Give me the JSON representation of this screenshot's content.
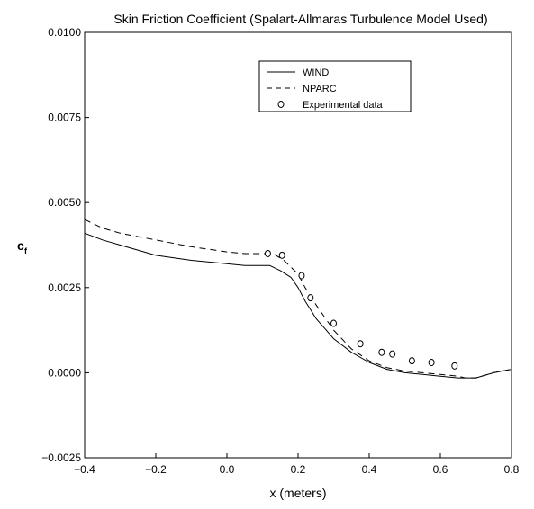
{
  "chart_data": {
    "type": "line",
    "title": "Skin Friction Coefficient (Spalart-Allmaras Turbulence Model Used)",
    "xlabel": "x (meters)",
    "ylabel_main": "c",
    "ylabel_sub": "f",
    "xlim": [
      -0.4,
      0.8
    ],
    "ylim": [
      -0.0025,
      0.01
    ],
    "xticks": [
      -0.4,
      -0.2,
      0.0,
      0.2,
      0.4,
      0.6,
      0.8
    ],
    "xtick_labels": [
      "−0.4",
      "−0.2",
      "0.0",
      "0.2",
      "0.4",
      "0.6",
      "0.8"
    ],
    "yticks": [
      -0.0025,
      0.0,
      0.0025,
      0.005,
      0.0075,
      0.01
    ],
    "ytick_labels": [
      "−0.0025",
      "0.0000",
      "0.0025",
      "0.0050",
      "0.0075",
      "0.0100"
    ],
    "grid": false,
    "legend_position": "top-right",
    "series": [
      {
        "name": "WIND",
        "style": "solid",
        "x": [
          -0.4,
          -0.35,
          -0.3,
          -0.2,
          -0.1,
          0.0,
          0.05,
          0.12,
          0.15,
          0.18,
          0.2,
          0.22,
          0.25,
          0.3,
          0.35,
          0.4,
          0.45,
          0.5,
          0.55,
          0.6,
          0.65,
          0.67,
          0.7,
          0.75,
          0.8
        ],
        "y": [
          0.0041,
          0.0039,
          0.00375,
          0.00345,
          0.0033,
          0.0032,
          0.00315,
          0.00315,
          0.003,
          0.0028,
          0.0025,
          0.0021,
          0.0016,
          0.001,
          0.0006,
          0.0003,
          0.0001,
          0.0,
          -5e-05,
          -0.0001,
          -0.00015,
          -0.00015,
          -0.00015,
          0.0,
          0.0001
        ]
      },
      {
        "name": "NPARC",
        "style": "dashed",
        "x": [
          -0.4,
          -0.35,
          -0.3,
          -0.2,
          -0.1,
          0.0,
          0.05,
          0.1,
          0.13,
          0.16,
          0.2,
          0.22,
          0.25,
          0.3,
          0.35,
          0.4,
          0.45,
          0.5,
          0.55,
          0.6,
          0.65,
          0.67,
          0.7,
          0.75,
          0.8
        ],
        "y": [
          0.0045,
          0.00425,
          0.0041,
          0.0039,
          0.0037,
          0.00355,
          0.0035,
          0.0035,
          0.0035,
          0.0033,
          0.0029,
          0.0025,
          0.002,
          0.00125,
          0.0007,
          0.00035,
          0.00015,
          5e-05,
          0.0,
          -5e-05,
          -0.0001,
          -0.00015,
          -0.00015,
          0.0,
          0.0001
        ]
      },
      {
        "name": "Experimental data",
        "style": "markers",
        "x": [
          0.115,
          0.155,
          0.21,
          0.235,
          0.3,
          0.375,
          0.435,
          0.465,
          0.52,
          0.575,
          0.64
        ],
        "y": [
          0.0035,
          0.00345,
          0.00285,
          0.0022,
          0.00145,
          0.00085,
          0.0006,
          0.00055,
          0.00035,
          0.0003,
          0.0002
        ]
      }
    ]
  }
}
